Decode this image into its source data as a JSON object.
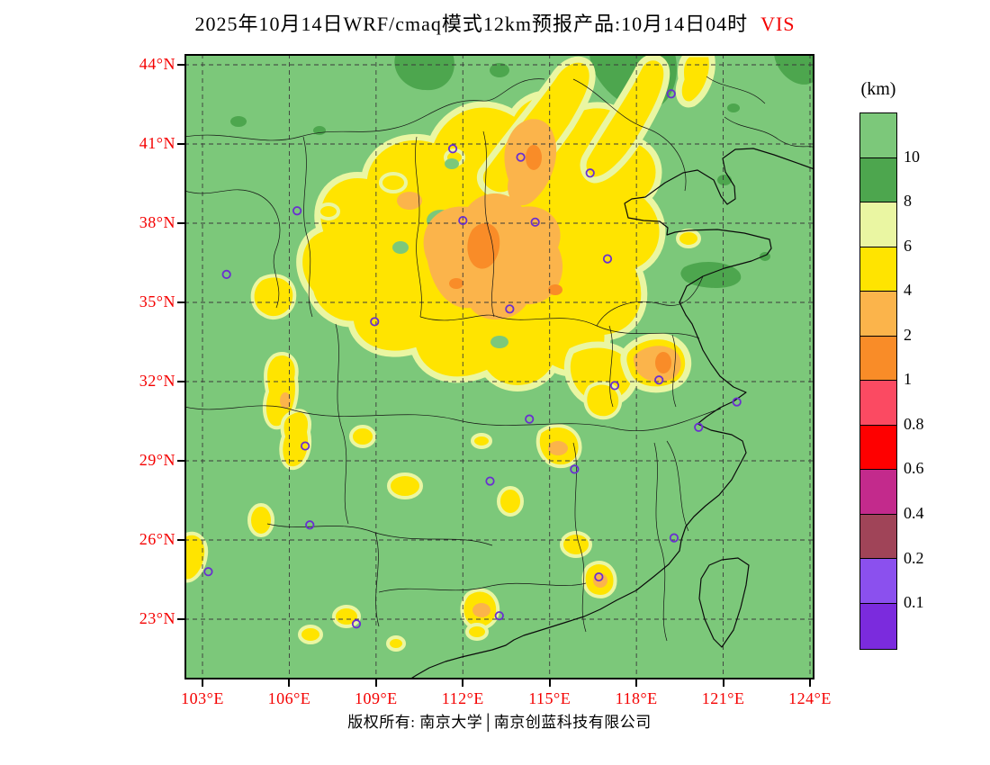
{
  "title": {
    "text": "2025年10月14日WRF/cmaq模式12km预报产品:10月14日04时",
    "suffix": "VIS"
  },
  "footer": {
    "text": "版权所有: 南京大学│南京创蓝科技有限公司"
  },
  "axes": {
    "lat_ticks": [
      {
        "deg": 44,
        "label": "44°N"
      },
      {
        "deg": 41,
        "label": "41°N"
      },
      {
        "deg": 38,
        "label": "38°N"
      },
      {
        "deg": 35,
        "label": "35°N"
      },
      {
        "deg": 32,
        "label": "32°N"
      },
      {
        "deg": 29,
        "label": "29°N"
      },
      {
        "deg": 26,
        "label": "26°N"
      },
      {
        "deg": 23,
        "label": "23°N"
      }
    ],
    "lon_ticks": [
      {
        "deg": 103,
        "label": "103°E"
      },
      {
        "deg": 106,
        "label": "106°E"
      },
      {
        "deg": 109,
        "label": "109°E"
      },
      {
        "deg": 112,
        "label": "112°E"
      },
      {
        "deg": 115,
        "label": "115°E"
      },
      {
        "deg": 118,
        "label": "118°E"
      },
      {
        "deg": 121,
        "label": "121°E"
      },
      {
        "deg": 124,
        "label": "124°E"
      }
    ]
  },
  "colorbar": {
    "unit": "(km)",
    "labels": [
      "10",
      "8",
      "6",
      "4",
      "2",
      "1",
      "0.8",
      "0.6",
      "0.4",
      "0.2",
      "0.1"
    ],
    "colors": [
      "#7CC87A",
      "#4DA64E",
      "#EAF6A2",
      "#FFE400",
      "#FBB44B",
      "#F98C28",
      "#FB4A62",
      "#FE0000",
      "#C32A8C",
      "#A04458",
      "#8B50EE",
      "#7B2BDD"
    ]
  },
  "palette": {
    "base": "#7CC87A",
    "dark": "#4DA64E",
    "pale": "#EAF6A2",
    "yellow": "#FFE400",
    "amber": "#FBB44B",
    "orange": "#F98C28",
    "grid": "#3A3A3A",
    "bound": "#141414",
    "coast": "#0A0A0A",
    "marker": "#6A2FD0",
    "axisred": "#F40000"
  },
  "markers": [
    [
      111.65,
      40.82
    ],
    [
      119.2,
      42.9
    ],
    [
      114.0,
      40.5
    ],
    [
      116.4,
      39.9
    ],
    [
      106.27,
      38.47
    ],
    [
      112.0,
      38.1
    ],
    [
      114.5,
      38.04
    ],
    [
      117.0,
      36.65
    ],
    [
      103.83,
      36.06
    ],
    [
      108.95,
      34.27
    ],
    [
      113.62,
      34.75
    ],
    [
      117.25,
      31.85
    ],
    [
      118.78,
      32.06
    ],
    [
      121.47,
      31.23
    ],
    [
      120.15,
      30.27
    ],
    [
      114.3,
      30.58
    ],
    [
      106.55,
      29.56
    ],
    [
      115.86,
      28.68
    ],
    [
      112.94,
      28.23
    ],
    [
      119.3,
      26.08
    ],
    [
      106.71,
      26.57
    ],
    [
      103.2,
      24.8
    ],
    [
      108.32,
      22.82
    ],
    [
      113.26,
      23.13
    ],
    [
      116.7,
      24.6
    ]
  ]
}
